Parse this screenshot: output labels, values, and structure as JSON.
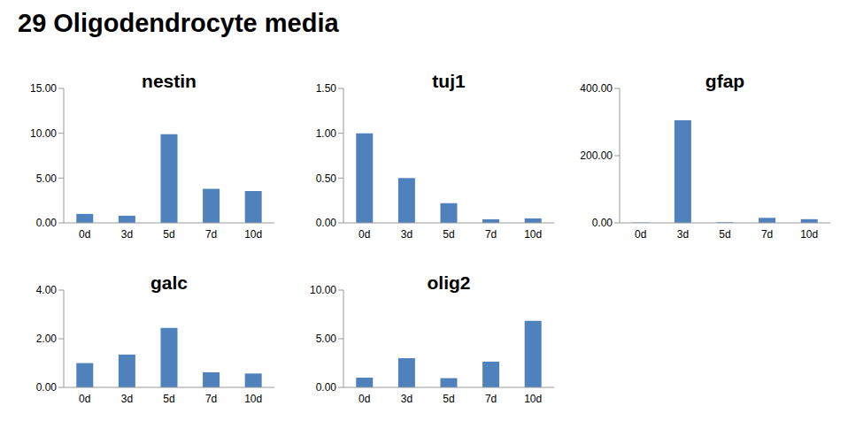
{
  "title": "29 Oligodendrocyte media",
  "chart_data": [
    {
      "type": "bar",
      "title": "nestin",
      "categories": [
        "0d",
        "3d",
        "5d",
        "7d",
        "10d"
      ],
      "values": [
        1.0,
        0.8,
        9.9,
        3.8,
        3.55
      ],
      "color": "#4f81bd",
      "ylim": [
        0,
        15
      ],
      "yticks": [
        {
          "value": 0,
          "label": "0.00"
        },
        {
          "value": 5,
          "label": "5.00"
        },
        {
          "value": 10,
          "label": "10.00"
        },
        {
          "value": 15,
          "label": "15.00"
        }
      ],
      "grid": false
    },
    {
      "type": "bar",
      "title": "tuj1",
      "categories": [
        "0d",
        "3d",
        "5d",
        "7d",
        "10d"
      ],
      "values": [
        1.0,
        0.5,
        0.22,
        0.04,
        0.05
      ],
      "color": "#4f81bd",
      "ylim": [
        0,
        1.5
      ],
      "yticks": [
        {
          "value": 0,
          "label": "0.00"
        },
        {
          "value": 0.5,
          "label": "0.50"
        },
        {
          "value": 1,
          "label": "1.00"
        },
        {
          "value": 1.5,
          "label": "1.50"
        }
      ],
      "grid": false
    },
    {
      "type": "bar",
      "title": "gfap",
      "categories": [
        "0d",
        "3d",
        "5d",
        "7d",
        "10d"
      ],
      "values": [
        1,
        305,
        2,
        15,
        11
      ],
      "color": "#4f81bd",
      "ylim": [
        0,
        400
      ],
      "yticks": [
        {
          "value": 0,
          "label": "0.00"
        },
        {
          "value": 200,
          "label": "200.00"
        },
        {
          "value": 400,
          "label": "400.00"
        }
      ],
      "grid": false
    },
    {
      "type": "bar",
      "title": "galc",
      "categories": [
        "0d",
        "3d",
        "5d",
        "7d",
        "10d"
      ],
      "values": [
        1.0,
        1.35,
        2.45,
        0.62,
        0.57
      ],
      "color": "#4f81bd",
      "ylim": [
        0,
        4
      ],
      "yticks": [
        {
          "value": 0,
          "label": "0.00"
        },
        {
          "value": 2,
          "label": "2.00"
        },
        {
          "value": 4,
          "label": "4.00"
        }
      ],
      "grid": false
    },
    {
      "type": "bar",
      "title": "olig2",
      "categories": [
        "0d",
        "3d",
        "5d",
        "7d",
        "10d"
      ],
      "values": [
        1.0,
        3.0,
        0.95,
        2.65,
        6.85
      ],
      "color": "#4f81bd",
      "ylim": [
        0,
        10
      ],
      "yticks": [
        {
          "value": 0,
          "label": "0.00"
        },
        {
          "value": 5,
          "label": "5.00"
        },
        {
          "value": 10,
          "label": "10.00"
        }
      ],
      "grid": false
    }
  ]
}
